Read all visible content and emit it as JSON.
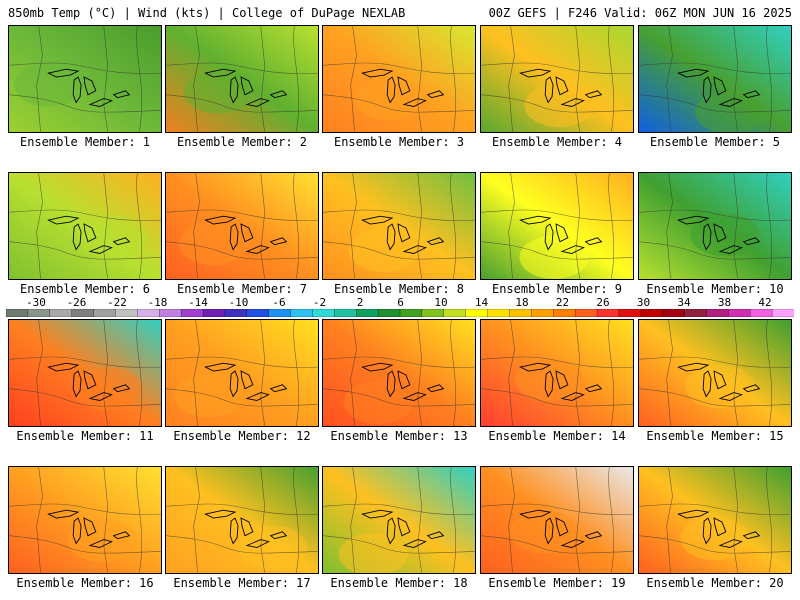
{
  "header": {
    "left": "850mb Temp (°C) | Wind (kts) | College of DuPage NEXLAB",
    "right": "00Z GEFS | F246 Valid: 06Z MON JUN 16 2025"
  },
  "colorbar": {
    "tick_labels": [
      "-30",
      "-26",
      "-22",
      "-18",
      "-14",
      "-10",
      "-6",
      "-2",
      "2",
      "6",
      "10",
      "14",
      "18",
      "22",
      "26",
      "30",
      "34",
      "38",
      "42"
    ],
    "colors": [
      "#6e7b6e",
      "#8a958a",
      "#a8a8a8",
      "#7f7f7f",
      "#a0a0a0",
      "#c0c0c0",
      "#d8b0e8",
      "#c080e0",
      "#a040d0",
      "#7020b0",
      "#4030c0",
      "#2050e0",
      "#2090f0",
      "#30c0f0",
      "#30d8d8",
      "#20c0a0",
      "#10a060",
      "#209030",
      "#40a020",
      "#80c020",
      "#c0e020",
      "#ffff00",
      "#ffe000",
      "#ffc000",
      "#ffa000",
      "#ff8000",
      "#ff6020",
      "#ff3030",
      "#e01010",
      "#c00000",
      "#a00010",
      "#902040",
      "#b02080",
      "#d030b0",
      "#f060e0",
      "#ffa0ff"
    ]
  },
  "panels": [
    {
      "label": "Ensemble Member: 1",
      "base": "#6cb83a",
      "accent": "#4a9c2c",
      "accent2": "#9cd030"
    },
    {
      "label": "Ensemble Member: 2",
      "base": "#60b030",
      "accent": "#b8e030",
      "accent2": "#f08020"
    },
    {
      "label": "Ensemble Member: 3",
      "base": "#ffa020",
      "accent": "#d8e830",
      "accent2": "#ff8020"
    },
    {
      "label": "Ensemble Member: 4",
      "base": "#ffc020",
      "accent": "#a8d830",
      "accent2": "#5aa830"
    },
    {
      "label": "Ensemble Member: 5",
      "base": "#48a030",
      "accent": "#30d0c0",
      "accent2": "#1060e0"
    },
    {
      "label": "Ensemble Member: 6",
      "base": "#b8e030",
      "accent": "#ffb020",
      "accent2": "#80c030"
    },
    {
      "label": "Ensemble Member: 7",
      "base": "#ff9020",
      "accent": "#ffe030",
      "accent2": "#ff6020"
    },
    {
      "label": "Ensemble Member: 8",
      "base": "#ffc020",
      "accent": "#70c040",
      "accent2": "#ff9020"
    },
    {
      "label": "Ensemble Member: 9",
      "base": "#ffff20",
      "accent": "#ffb020",
      "accent2": "#48a030"
    },
    {
      "label": "Ensemble Member: 10",
      "base": "#40a030",
      "accent": "#30d0c0",
      "accent2": "#b8e030"
    },
    {
      "label": "Ensemble Member: 11",
      "base": "#ff8020",
      "accent": "#30d0c0",
      "accent2": "#ff4020"
    },
    {
      "label": "Ensemble Member: 12",
      "base": "#ffa020",
      "accent": "#ffe020",
      "accent2": "#ff8020"
    },
    {
      "label": "Ensemble Member: 13",
      "base": "#ff8020",
      "accent": "#ffe020",
      "accent2": "#ff5020"
    },
    {
      "label": "Ensemble Member: 14",
      "base": "#ff9020",
      "accent": "#ffe020",
      "accent2": "#ff4030"
    },
    {
      "label": "Ensemble Member: 15",
      "base": "#ffc020",
      "accent": "#40a030",
      "accent2": "#ff6020"
    },
    {
      "label": "Ensemble Member: 16",
      "base": "#ffa020",
      "accent": "#ffe030",
      "accent2": "#ff6020"
    },
    {
      "label": "Ensemble Member: 17",
      "base": "#ffc020",
      "accent": "#48a030",
      "accent2": "#ffa020"
    },
    {
      "label": "Ensemble Member: 18",
      "base": "#ffc020",
      "accent": "#30d0c0",
      "accent2": "#80c030"
    },
    {
      "label": "Ensemble Member: 19",
      "base": "#ff9020",
      "accent": "#e8e8e8",
      "accent2": "#ff6020"
    },
    {
      "label": "Ensemble Member: 20",
      "base": "#ffc020",
      "accent": "#40a030",
      "accent2": "#ff6020"
    }
  ]
}
